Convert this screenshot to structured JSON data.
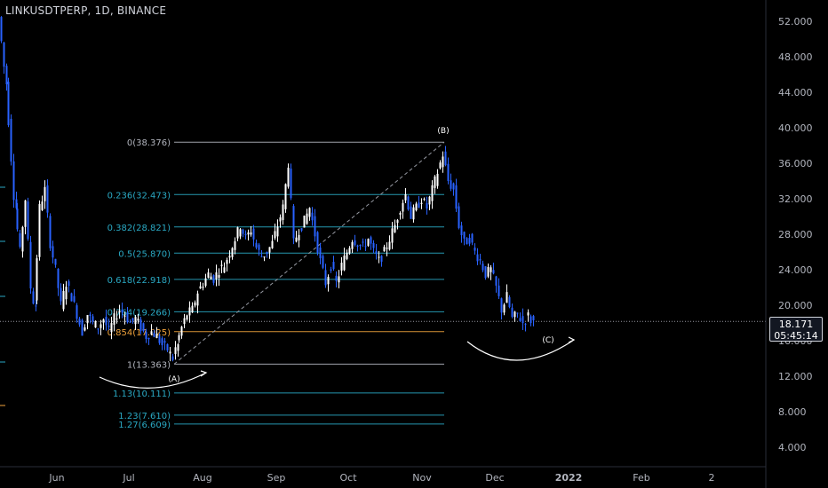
{
  "chart_data": {
    "type": "candlestick",
    "title": "LINKUSDTPERP, 1D, BINANCE",
    "x_ticks": [
      "Jun",
      "Jul",
      "Aug",
      "Sep",
      "Oct",
      "Nov",
      "Dec",
      "2022",
      "Feb",
      "2"
    ],
    "y_ticks": [
      "4.000",
      "8.000",
      "12.000",
      "16.000",
      "20.000",
      "24.000",
      "28.000",
      "32.000",
      "36.000",
      "40.000",
      "44.000",
      "48.000",
      "52.000"
    ],
    "ylim": [
      2,
      54
    ],
    "last_price": "18.171",
    "countdown": "05:45:14",
    "colors": {
      "up": "#ffffff",
      "down": "#2962ff",
      "fib": "#2aa9c4",
      "fib_top": "#b2b5be",
      "fib_0786": "#f0a23b",
      "curve": "#ffffff"
    },
    "fib_levels": [
      {
        "ratio": "0",
        "price": 38.376,
        "label": "0(38.376)"
      },
      {
        "ratio": "0.236",
        "price": 32.473,
        "label": "0.236(32.473)"
      },
      {
        "ratio": "0.382",
        "price": 28.821,
        "label": "0.382(28.821)"
      },
      {
        "ratio": "0.5",
        "price": 25.87,
        "label": "0.5(25.870)"
      },
      {
        "ratio": "0.618",
        "price": 22.918,
        "label": "0.618(22.918)"
      },
      {
        "ratio": "0.764",
        "price": 19.266,
        "label": "0.764(19.266)"
      },
      {
        "ratio": "0.854",
        "price": 17.025,
        "label": "0.854(17.025)"
      },
      {
        "ratio": "1",
        "price": 13.363,
        "label": "1(13.363)"
      },
      {
        "ratio": "1.13",
        "price": 10.111,
        "label": "1.13(10.111)"
      },
      {
        "ratio": "1.23",
        "price": 7.61,
        "label": "1.23(7.610)"
      },
      {
        "ratio": "1.27",
        "price": 6.609,
        "label": "1.27(6.609)"
      }
    ],
    "wave_labels": [
      "(A)",
      "(B)",
      "(C)"
    ],
    "series": [
      {
        "segments": [
          {
            "x": [
              0,
              8
            ],
            "y": [
              52.5,
              45
            ]
          },
          {
            "x": [
              8,
              18
            ],
            "y": [
              45,
              31
            ]
          },
          {
            "x": [
              18,
              24
            ],
            "y": [
              31,
              26
            ]
          },
          {
            "x": [
              24,
              30
            ],
            "y": [
              26,
              32
            ]
          },
          {
            "x": [
              30,
              36
            ],
            "y": [
              32,
              22
            ]
          },
          {
            "x": [
              36,
              40
            ],
            "y": [
              22,
              20
            ]
          },
          {
            "x": [
              40,
              46
            ],
            "y": [
              20,
              31
            ]
          },
          {
            "x": [
              46,
              52
            ],
            "y": [
              31,
              33
            ]
          },
          {
            "x": [
              52,
              58
            ],
            "y": [
              33,
              27
            ]
          },
          {
            "x": [
              58,
              64
            ],
            "y": [
              27,
              24
            ]
          },
          {
            "x": [
              64,
              70
            ],
            "y": [
              24,
              20
            ]
          },
          {
            "x": [
              70,
              76
            ],
            "y": [
              20,
              22.5
            ]
          },
          {
            "x": [
              76,
              82
            ],
            "y": [
              22.5,
              21
            ]
          },
          {
            "x": [
              82,
              88
            ],
            "y": [
              21,
              19
            ]
          },
          {
            "x": [
              88,
              94
            ],
            "y": [
              19,
              17
            ]
          },
          {
            "x": [
              94,
              100
            ],
            "y": [
              17,
              19
            ]
          },
          {
            "x": [
              100,
              106
            ],
            "y": [
              19,
              18
            ]
          },
          {
            "x": [
              106,
              112
            ],
            "y": [
              18,
              17.5
            ]
          },
          {
            "x": [
              112,
              118
            ],
            "y": [
              17.5,
              18.5
            ]
          },
          {
            "x": [
              118,
              124
            ],
            "y": [
              18.5,
              17
            ]
          },
          {
            "x": [
              124,
              130
            ],
            "y": [
              17,
              18.5
            ]
          },
          {
            "x": [
              130,
              136
            ],
            "y": [
              18.5,
              19.5
            ]
          },
          {
            "x": [
              136,
              142
            ],
            "y": [
              19.5,
              19
            ]
          },
          {
            "x": [
              142,
              148
            ],
            "y": [
              19,
              18
            ]
          },
          {
            "x": [
              148,
              154
            ],
            "y": [
              18,
              18.5
            ]
          },
          {
            "x": [
              154,
              160
            ],
            "y": [
              18.5,
              17.5
            ]
          },
          {
            "x": [
              160,
              166
            ],
            "y": [
              17.5,
              16.5
            ]
          },
          {
            "x": [
              166,
              172
            ],
            "y": [
              16.5,
              17
            ]
          },
          {
            "x": [
              172,
              178
            ],
            "y": [
              17,
              16.5
            ]
          },
          {
            "x": [
              178,
              184
            ],
            "y": [
              16.5,
              15.5
            ]
          },
          {
            "x": [
              184,
              190
            ],
            "y": [
              15.5,
              15
            ]
          },
          {
            "x": [
              190,
              196
            ],
            "y": [
              15,
              14
            ]
          },
          {
            "x": [
              196,
              200
            ],
            "y": [
              14,
              15.5
            ]
          },
          {
            "x": [
              200,
              206
            ],
            "y": [
              15.5,
              17.5
            ]
          },
          {
            "x": [
              206,
              212
            ],
            "y": [
              17.5,
              19
            ]
          },
          {
            "x": [
              212,
              218
            ],
            "y": [
              19,
              19.5
            ]
          },
          {
            "x": [
              218,
              224
            ],
            "y": [
              19.5,
              21.5
            ]
          },
          {
            "x": [
              224,
              230
            ],
            "y": [
              21.5,
              22.5
            ]
          },
          {
            "x": [
              230,
              236
            ],
            "y": [
              22.5,
              23.5
            ]
          },
          {
            "x": [
              236,
              242
            ],
            "y": [
              23.5,
              23
            ]
          },
          {
            "x": [
              242,
              248
            ],
            "y": [
              23,
              24
            ]
          },
          {
            "x": [
              248,
              254
            ],
            "y": [
              24,
              24.5
            ]
          },
          {
            "x": [
              254,
              260
            ],
            "y": [
              24.5,
              26
            ]
          },
          {
            "x": [
              260,
              266
            ],
            "y": [
              26,
              27.5
            ]
          },
          {
            "x": [
              266,
              272
            ],
            "y": [
              27.5,
              29
            ]
          },
          {
            "x": [
              272,
              278
            ],
            "y": [
              29,
              27.5
            ]
          },
          {
            "x": [
              278,
              284
            ],
            "y": [
              27.5,
              28.5
            ]
          },
          {
            "x": [
              284,
              290
            ],
            "y": [
              28.5,
              26.5
            ]
          },
          {
            "x": [
              290,
              296
            ],
            "y": [
              26.5,
              25.5
            ]
          },
          {
            "x": [
              296,
              302
            ],
            "y": [
              25.5,
              26
            ]
          },
          {
            "x": [
              302,
              308
            ],
            "y": [
              26,
              27
            ]
          },
          {
            "x": [
              308,
              314
            ],
            "y": [
              27,
              29
            ]
          },
          {
            "x": [
              314,
              320
            ],
            "y": [
              29,
              31
            ]
          },
          {
            "x": [
              320,
              326
            ],
            "y": [
              31,
              36
            ]
          },
          {
            "x": [
              326,
              332
            ],
            "y": [
              36,
              27
            ]
          },
          {
            "x": [
              332,
              338
            ],
            "y": [
              27,
              28.5
            ]
          },
          {
            "x": [
              338,
              344
            ],
            "y": [
              28.5,
              29.5
            ]
          },
          {
            "x": [
              344,
              350
            ],
            "y": [
              29.5,
              31
            ]
          },
          {
            "x": [
              350,
              356
            ],
            "y": [
              31,
              28
            ]
          },
          {
            "x": [
              356,
              362
            ],
            "y": [
              28,
              25
            ]
          },
          {
            "x": [
              362,
              368
            ],
            "y": [
              25,
              22.5
            ]
          },
          {
            "x": [
              368,
              374
            ],
            "y": [
              22.5,
              24.5
            ]
          },
          {
            "x": [
              374,
              380
            ],
            "y": [
              24.5,
              22.5
            ]
          },
          {
            "x": [
              380,
              386
            ],
            "y": [
              22.5,
              24.5
            ]
          },
          {
            "x": [
              386,
              392
            ],
            "y": [
              24.5,
              26
            ]
          },
          {
            "x": [
              392,
              398
            ],
            "y": [
              26,
              27.5
            ]
          },
          {
            "x": [
              398,
              404
            ],
            "y": [
              27.5,
              27
            ]
          },
          {
            "x": [
              404,
              410
            ],
            "y": [
              27,
              26.5
            ]
          },
          {
            "x": [
              410,
              416
            ],
            "y": [
              26.5,
              27.5
            ]
          },
          {
            "x": [
              416,
              422
            ],
            "y": [
              27.5,
              26
            ]
          },
          {
            "x": [
              422,
              428
            ],
            "y": [
              26,
              25
            ]
          },
          {
            "x": [
              428,
              434
            ],
            "y": [
              25,
              26
            ]
          },
          {
            "x": [
              434,
              440
            ],
            "y": [
              26,
              27.5
            ]
          },
          {
            "x": [
              440,
              446
            ],
            "y": [
              27.5,
              29
            ]
          },
          {
            "x": [
              446,
              452
            ],
            "y": [
              29,
              31
            ]
          },
          {
            "x": [
              452,
              458
            ],
            "y": [
              31,
              32.5
            ]
          },
          {
            "x": [
              458,
              464
            ],
            "y": [
              32.5,
              30
            ]
          },
          {
            "x": [
              464,
              470
            ],
            "y": [
              30,
              31
            ]
          },
          {
            "x": [
              470,
              476
            ],
            "y": [
              31,
              32
            ]
          },
          {
            "x": [
              476,
              482
            ],
            "y": [
              32,
              31
            ]
          },
          {
            "x": [
              482,
              488
            ],
            "y": [
              31,
              33
            ]
          },
          {
            "x": [
              488,
              494
            ],
            "y": [
              33,
              35
            ]
          },
          {
            "x": [
              494,
              500
            ],
            "y": [
              35,
              37
            ]
          },
          {
            "x": [
              500,
              506
            ],
            "y": [
              37,
              34
            ]
          },
          {
            "x": [
              506,
              512
            ],
            "y": [
              34,
              33
            ]
          },
          {
            "x": [
              512,
              518
            ],
            "y": [
              33,
              29
            ]
          },
          {
            "x": [
              518,
              524
            ],
            "y": [
              29,
              27
            ]
          },
          {
            "x": [
              524,
              530
            ],
            "y": [
              27,
              27.5
            ]
          },
          {
            "x": [
              530,
              536
            ],
            "y": [
              27.5,
              26
            ]
          },
          {
            "x": [
              536,
              542
            ],
            "y": [
              26,
              25
            ]
          },
          {
            "x": [
              542,
              548
            ],
            "y": [
              25,
              23.5
            ]
          },
          {
            "x": [
              548,
              554
            ],
            "y": [
              23.5,
              24
            ]
          },
          {
            "x": [
              554,
              560
            ],
            "y": [
              24,
              22
            ]
          },
          {
            "x": [
              560,
              566
            ],
            "y": [
              22,
              19.5
            ]
          },
          {
            "x": [
              566,
              572
            ],
            "y": [
              19.5,
              21
            ]
          },
          {
            "x": [
              572,
              578
            ],
            "y": [
              21,
              18.5
            ]
          },
          {
            "x": [
              578,
              584
            ],
            "y": [
              18.5,
              19
            ]
          },
          {
            "x": [
              584,
              590
            ],
            "y": [
              19,
              18
            ]
          },
          {
            "x": [
              590,
              596
            ],
            "y": [
              18,
              18.8
            ]
          },
          {
            "x": [
              596,
              600
            ],
            "y": [
              18.8,
              18.171
            ]
          }
        ]
      }
    ]
  }
}
